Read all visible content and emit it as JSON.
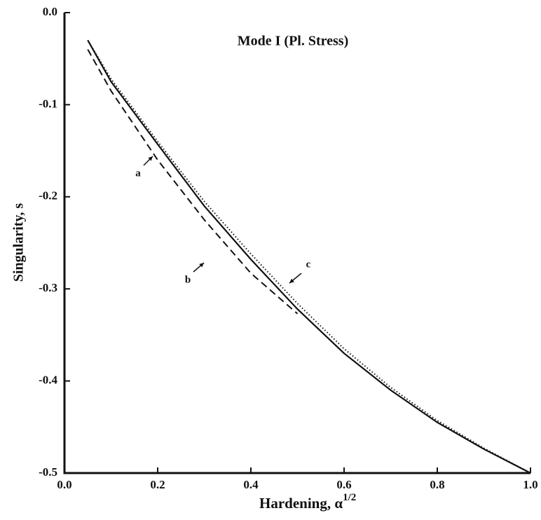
{
  "chart_data": {
    "type": "line",
    "title": "Mode I (Pl. Stress)",
    "x_label": "Hardening, α",
    "x_label_sup": "1/2",
    "y_label": "Singularity, s",
    "xlim": [
      0,
      1.0
    ],
    "ylim": [
      -0.5,
      0
    ],
    "xticks": [
      {
        "value": 0,
        "label": "0.0"
      },
      0.2,
      0.4,
      0.6,
      0.8,
      {
        "value": 1.0,
        "label": "1.0"
      }
    ],
    "yticks": [
      {
        "value": 0,
        "label": "0.0"
      },
      -0.1,
      -0.2,
      -0.3,
      -0.4,
      -0.5
    ],
    "series": [
      {
        "name": "a",
        "color": "#111",
        "style": "solid",
        "x": [
          0.05,
          0.1,
          0.2,
          0.3,
          0.4,
          0.5,
          0.6,
          0.7,
          0.8,
          0.9,
          1.0
        ],
        "values": [
          -0.03,
          -0.075,
          -0.143,
          -0.21,
          -0.268,
          -0.322,
          -0.37,
          -0.41,
          -0.445,
          -0.474,
          -0.5
        ]
      },
      {
        "name": "b",
        "color": "#111",
        "style": "dashed",
        "x": [
          0.05,
          0.1,
          0.2,
          0.3,
          0.4,
          0.5
        ],
        "values": [
          -0.04,
          -0.085,
          -0.16,
          -0.225,
          -0.283,
          -0.327
        ]
      },
      {
        "name": "c",
        "color": "#111",
        "style": "dotted",
        "x": [
          0.05,
          0.1,
          0.2,
          0.3,
          0.4,
          0.5,
          0.6,
          0.7,
          0.8,
          0.9,
          1.0
        ],
        "values": [
          -0.03,
          -0.072,
          -0.14,
          -0.205,
          -0.262,
          -0.316,
          -0.365,
          -0.407,
          -0.443,
          -0.473,
          -0.5
        ]
      }
    ]
  }
}
